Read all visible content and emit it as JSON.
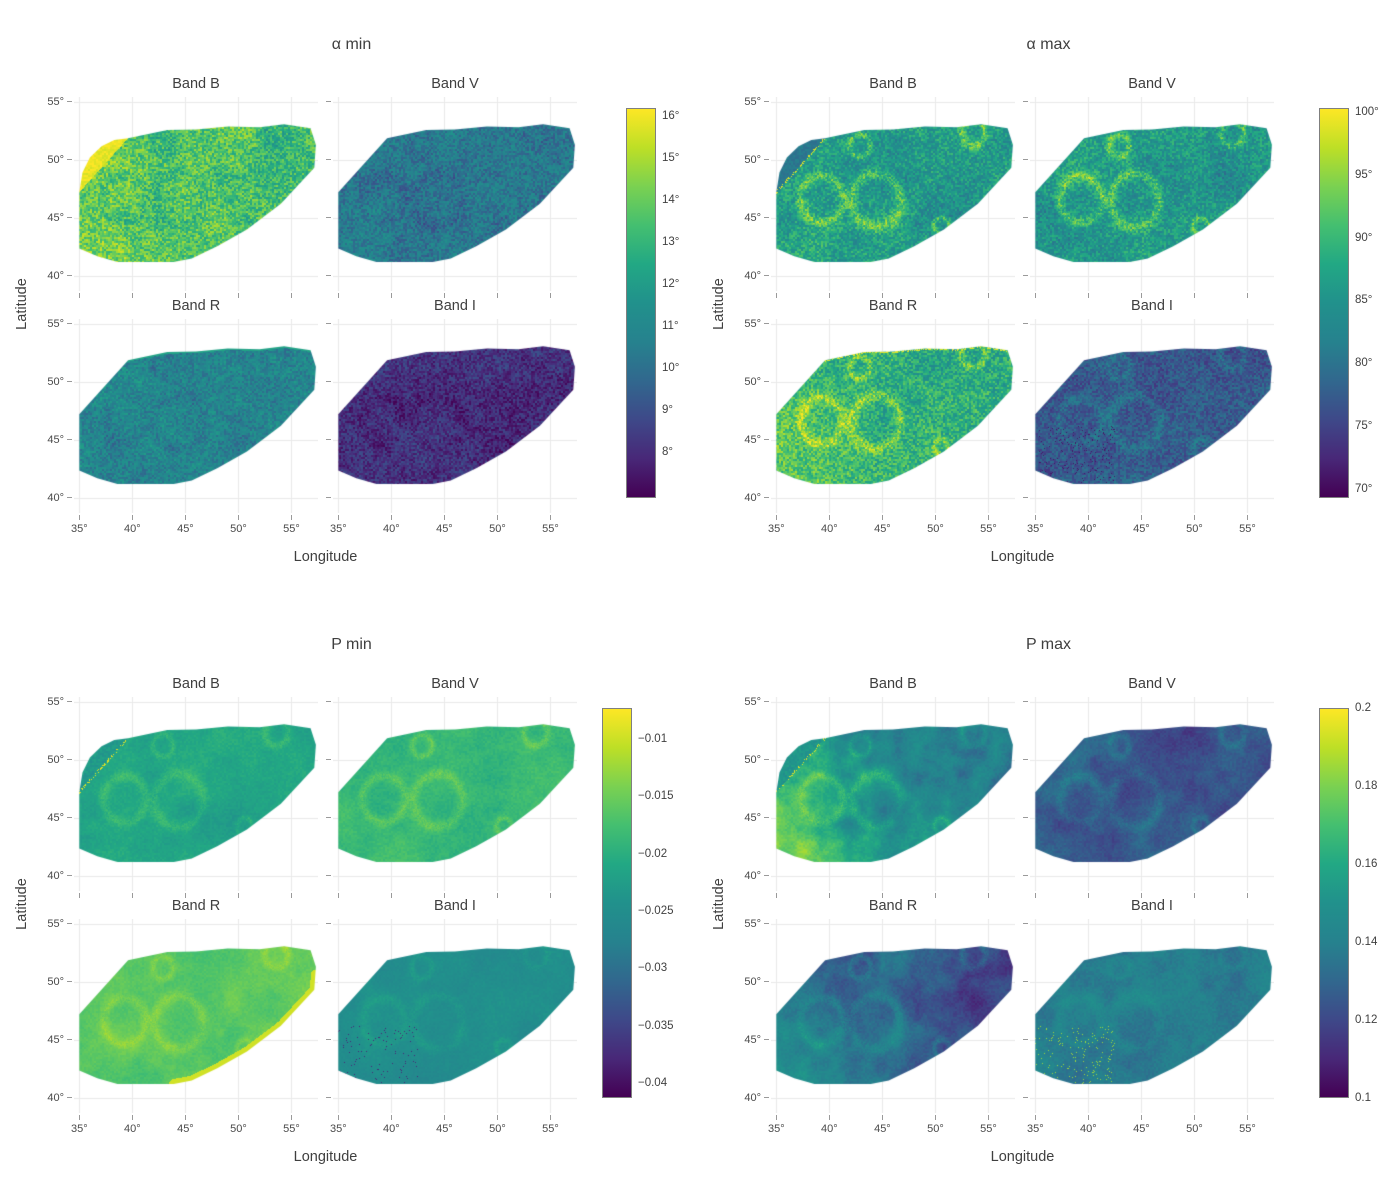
{
  "chart_data": {
    "type": "heatmap",
    "description": "Faceted lunar-surface maps: minimum/maximum phase angle (α) and polarization (P) per photometric band, plotted in longitude/latitude with viridis colormaps.",
    "facet_bands": [
      "Band B",
      "Band V",
      "Band R",
      "Band I"
    ],
    "axes": {
      "xlabel": "Longitude",
      "ylabel": "Latitude",
      "xlim": [
        34.5,
        57.5
      ],
      "ylim": [
        38.7,
        55.4
      ],
      "xticks": [
        35,
        40,
        45,
        50,
        55
      ],
      "xtick_labels": [
        "35°",
        "40°",
        "45°",
        "50°",
        "55°"
      ],
      "yticks": [
        55,
        50,
        45,
        40
      ],
      "ytick_labels": [
        "55°",
        "50°",
        "45°",
        "40°"
      ],
      "grid": true
    },
    "colormap": {
      "name": "viridis",
      "stops": [
        "#440154",
        "#482878",
        "#3e4989",
        "#31688e",
        "#26828e",
        "#21918c",
        "#22a884",
        "#44bf70",
        "#7ad151",
        "#bddf26",
        "#fde725"
      ]
    },
    "region_polygon_lonlat": [
      [
        35,
        47.2
      ],
      [
        39.6,
        51.85
      ],
      [
        40.6,
        52.05
      ],
      [
        43.3,
        52.55
      ],
      [
        46,
        52.6
      ],
      [
        49,
        52.85
      ],
      [
        52,
        52.8
      ],
      [
        54.3,
        53.05
      ],
      [
        56.8,
        52.7
      ],
      [
        57.3,
        51.3
      ],
      [
        57.15,
        49.3
      ],
      [
        54,
        46.2
      ],
      [
        50.8,
        44.0
      ],
      [
        48,
        42.55
      ],
      [
        45.6,
        41.5
      ],
      [
        43.9,
        41.2
      ],
      [
        38.6,
        41.2
      ],
      [
        36.7,
        41.7
      ],
      [
        35,
        42.35
      ]
    ],
    "band_b_wedge_arc": [
      [
        35,
        47.2
      ],
      [
        35.3,
        48.9
      ],
      [
        36.0,
        50.2
      ],
      [
        37.1,
        51.15
      ],
      [
        38.3,
        51.7
      ],
      [
        39.6,
        51.85
      ]
    ],
    "top_edge": [
      [
        39.6,
        51.85
      ],
      [
        40.6,
        52.05
      ],
      [
        43.3,
        52.55
      ],
      [
        46,
        52.6
      ],
      [
        49,
        52.85
      ],
      [
        52,
        52.8
      ],
      [
        54.3,
        53.05
      ],
      [
        56.8,
        52.7
      ]
    ],
    "lower_right_edge": [
      [
        57.25,
        50.6
      ],
      [
        57.15,
        49.3
      ],
      [
        54,
        46.2
      ],
      [
        50.8,
        44.0
      ],
      [
        48,
        42.55
      ],
      [
        45.6,
        41.5
      ],
      [
        43.9,
        41.2
      ]
    ],
    "craters": [
      {
        "lon": 39.3,
        "lat": 46.6,
        "radius": 2.0,
        "width": 0.45
      },
      {
        "lon": 44.4,
        "lat": 46.5,
        "radius": 2.3,
        "width": 0.5
      },
      {
        "lon": 42.9,
        "lat": 51.2,
        "radius": 0.95,
        "width": 0.3
      },
      {
        "lon": 53.6,
        "lat": 52.3,
        "radius": 1.1,
        "width": 0.35
      },
      {
        "lon": 50.6,
        "lat": 44.3,
        "radius": 0.7,
        "width": 0.25
      }
    ],
    "groups": [
      {
        "id": "alpha-min",
        "title": "α min",
        "colorbar": {
          "top_value": 16.2,
          "bottom_value": 6.9,
          "ticks": [
            16,
            15,
            14,
            13,
            12,
            11,
            10,
            9,
            8
          ],
          "tick_labels": [
            "16°",
            "15°",
            "14°",
            "13°",
            "12°",
            "11°",
            "10°",
            "9°",
            "8°"
          ]
        },
        "panels": [
          {
            "band": "Band B",
            "render": {
              "mean": 13.6,
              "smooth": 0.07,
              "speckle": 0.14,
              "crater": -0.06,
              "ll": 0.06,
              "wedge_t": 0.97
            }
          },
          {
            "band": "Band V",
            "render": {
              "mean": 10.4,
              "smooth": 0.05,
              "speckle": 0.11,
              "crater": -0.05
            }
          },
          {
            "band": "Band R",
            "render": {
              "mean": 10.9,
              "smooth": 0.05,
              "speckle": 0.11,
              "crater": -0.05,
              "top_stripe": 0.58
            }
          },
          {
            "band": "Band I",
            "render": {
              "mean": 8.1,
              "smooth": 0.04,
              "speckle": 0.09,
              "crater": -0.03
            }
          }
        ]
      },
      {
        "id": "alpha-max",
        "title": "α max",
        "colorbar": {
          "top_value": 100.3,
          "bottom_value": 69.3,
          "ticks": [
            100,
            95,
            90,
            85,
            80,
            75,
            70
          ],
          "tick_labels": [
            "100°",
            "95°",
            "90°",
            "85°",
            "80°",
            "75°",
            "70°"
          ]
        },
        "panels": [
          {
            "band": "Band B",
            "render": {
              "mean": 85.8,
              "smooth": 0.08,
              "speckle": 0.13,
              "crater": 0.2,
              "ll": 0.05,
              "wedge_t": 0.36,
              "wedge_dots": 0.4
            }
          },
          {
            "band": "Band V",
            "render": {
              "mean": 85.2,
              "smooth": 0.08,
              "speckle": 0.13,
              "crater": 0.2
            }
          },
          {
            "band": "Band R",
            "render": {
              "mean": 88.3,
              "smooth": 0.06,
              "speckle": 0.14,
              "crater": 0.18,
              "ll": 0.14,
              "top_dots": 0.5
            }
          },
          {
            "band": "Band I",
            "render": {
              "mean": 77.0,
              "smooth": 0.05,
              "speckle": 0.09,
              "crater": 0.08,
              "dots_t": 0.05,
              "dots_p": 0.035
            }
          }
        ]
      },
      {
        "id": "p-min",
        "title": "P min",
        "colorbar": {
          "top_value": -0.0073,
          "bottom_value": -0.0413,
          "ticks": [
            -0.01,
            -0.015,
            -0.02,
            -0.025,
            -0.03,
            -0.035,
            -0.04
          ],
          "tick_labels": [
            "−0.01",
            "−0.015",
            "−0.02",
            "−0.025",
            "−0.03",
            "−0.035",
            "−0.04"
          ]
        },
        "panels": [
          {
            "band": "Band B",
            "render": {
              "mean": -0.0215,
              "smooth": 0.05,
              "speckle": 0.025,
              "crater": 0.07,
              "wedge_t": 0.54,
              "wedge_dots": 0.35
            }
          },
          {
            "band": "Band V",
            "render": {
              "mean": -0.0185,
              "smooth": 0.05,
              "speckle": 0.025,
              "crater": 0.08
            }
          },
          {
            "band": "Band R",
            "render": {
              "mean": -0.016,
              "smooth": 0.05,
              "speckle": 0.02,
              "crater": 0.06,
              "edge_stripe": 0.93
            }
          },
          {
            "band": "Band I",
            "render": {
              "mean": -0.025,
              "smooth": 0.04,
              "speckle": 0.02,
              "crater": 0.05,
              "dots_t": 0.1,
              "dots_p": 0.02
            }
          }
        ]
      },
      {
        "id": "p-max",
        "title": "P max",
        "colorbar": {
          "top_value": 0.2,
          "bottom_value": 0.1,
          "ticks": [
            0.2,
            0.18,
            0.16,
            0.14,
            0.12,
            0.1
          ],
          "tick_labels": [
            "0.2",
            "0.18",
            "0.16",
            "0.14",
            "0.12",
            "0.1"
          ]
        },
        "panels": [
          {
            "band": "Band B",
            "render": {
              "mean": 0.144,
              "smooth": 0.16,
              "speckle": 0.03,
              "crater": 0.1,
              "ll": 0.28,
              "gx": -0.06,
              "wedge_t": 0.52,
              "wedge_dots": 0.25
            }
          },
          {
            "band": "Band V",
            "render": {
              "mean": 0.124,
              "smooth": 0.09,
              "speckle": 0.03,
              "crater": 0.07,
              "gx": -0.05
            }
          },
          {
            "band": "Band R",
            "render": {
              "mean": 0.126,
              "smooth": 0.11,
              "speckle": 0.03,
              "crater": 0.09,
              "ll": 0.12,
              "gx": -0.08
            }
          },
          {
            "band": "Band I",
            "render": {
              "mean": 0.138,
              "smooth": 0.07,
              "speckle": 0.03,
              "crater": 0.05,
              "dots_t": 0.85,
              "dots_p": 0.035
            }
          }
        ]
      }
    ]
  },
  "style": {
    "background": "#ffffff",
    "text_color": "#3f3f3f",
    "tick_label_color": "#4a4a4a",
    "tick_mark_color": "#9a9a9a",
    "grid_color": "#e9e9e9",
    "colorbar_border": "#7f7f7f"
  }
}
